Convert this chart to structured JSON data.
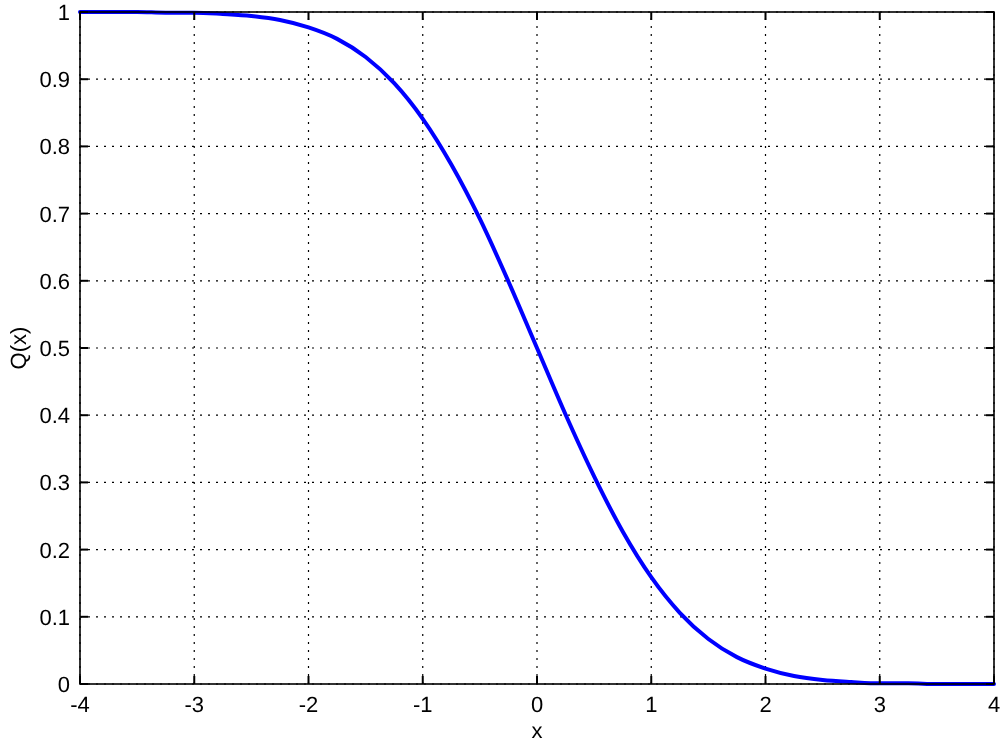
{
  "chart_data": {
    "type": "line",
    "xlabel": "x",
    "ylabel": "Q(x)",
    "x": [
      -4,
      -3.75,
      -3.5,
      -3.25,
      -3,
      -2.75,
      -2.5,
      -2.25,
      -2,
      -1.75,
      -1.5,
      -1.25,
      -1,
      -0.75,
      -0.5,
      -0.25,
      0,
      0.25,
      0.5,
      0.75,
      1,
      1.25,
      1.5,
      1.75,
      2,
      2.25,
      2.5,
      2.75,
      3,
      3.25,
      3.5,
      3.75,
      4
    ],
    "series": [
      {
        "color": "#0000ff",
        "values": [
          1,
          1,
          1,
          0.999,
          0.999,
          0.997,
          0.994,
          0.988,
          0.977,
          0.96,
          0.933,
          0.894,
          0.841,
          0.773,
          0.692,
          0.599,
          0.5,
          0.401,
          0.309,
          0.227,
          0.159,
          0.106,
          0.067,
          0.04,
          0.023,
          0.012,
          0.006,
          0.003,
          0.001,
          0.001,
          0,
          0,
          0
        ]
      }
    ],
    "xlim": [
      -4,
      4
    ],
    "ylim": [
      0,
      1
    ],
    "xticks": [
      -4,
      -3,
      -2,
      -1,
      0,
      1,
      2,
      3,
      4
    ],
    "yticks": [
      0,
      0.1,
      0.2,
      0.3,
      0.4,
      0.5,
      0.6,
      0.7,
      0.8,
      0.9,
      1
    ],
    "grid": true,
    "line_style": "solid"
  }
}
